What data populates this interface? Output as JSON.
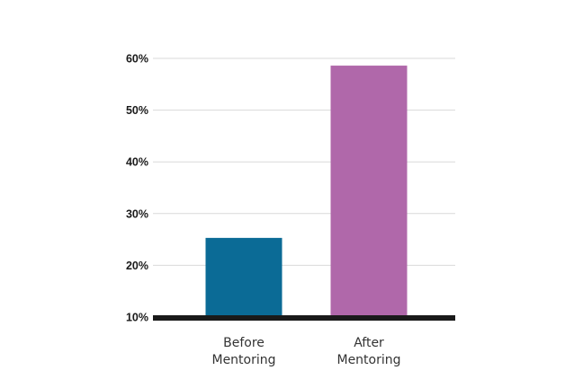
{
  "chart_data": {
    "type": "bar",
    "categories": [
      [
        "Before",
        "Mentoring"
      ],
      [
        "After",
        "Mentoring"
      ]
    ],
    "values": [
      25.3,
      58.6
    ],
    "colors": [
      "#0b6b96",
      "#b068aa"
    ],
    "ylim": [
      10,
      60
    ],
    "yticks": [
      10,
      20,
      30,
      40,
      50,
      60
    ],
    "ytick_labels": [
      "10%",
      "20%",
      "30%",
      "40%",
      "50%",
      "60%"
    ],
    "grid": true,
    "title": "",
    "xlabel": "",
    "ylabel": ""
  }
}
